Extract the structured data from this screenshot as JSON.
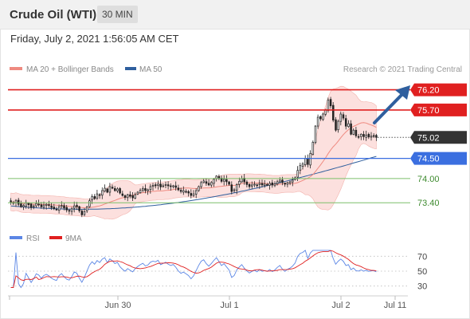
{
  "header": {
    "title": "Crude Oil (WTI)",
    "timeframe": "30 MIN"
  },
  "timestamp": "Friday, July 2, 2021 1:56:05 AM CET",
  "main_legend": [
    {
      "label": "MA 20 + Bollinger Bands",
      "color": "#ef8a80"
    },
    {
      "label": "MA 50",
      "color": "#2f5f9e"
    }
  ],
  "copyright": "Research © 2021 Trading Central",
  "chart_data": [
    {
      "type": "candlestick",
      "ylim": [
        72.85,
        76.45
      ],
      "x_ticks": [
        "Jun 30",
        "Jul 1",
        "Jul 2",
        "Jul 11"
      ],
      "grid": false,
      "legend_position": "top-left",
      "series": [
        {
          "name": "MA 20 + Bollinger Bands",
          "color": "#ef8a80"
        },
        {
          "name": "MA 50",
          "color": "#2f5f9e"
        }
      ],
      "ohlc_close": [
        73.42,
        73.4,
        73.46,
        73.36,
        73.3,
        73.33,
        73.4,
        73.35,
        73.28,
        73.32,
        73.38,
        73.36,
        73.3,
        73.34,
        73.36,
        73.33,
        73.28,
        73.25,
        73.23,
        73.3,
        73.33,
        73.27,
        73.22,
        73.2,
        73.25,
        73.32,
        73.3,
        73.2,
        73.1,
        73.18,
        73.3,
        73.45,
        73.55,
        73.5,
        73.62,
        73.58,
        73.7,
        73.76,
        73.66,
        73.8,
        73.76,
        73.7,
        73.74,
        73.64,
        73.58,
        73.53,
        73.6,
        73.56,
        73.52,
        73.6,
        73.66,
        73.71,
        73.75,
        73.7,
        73.72,
        73.8,
        73.83,
        73.82,
        73.86,
        73.79,
        73.82,
        73.85,
        73.82,
        73.8,
        73.82,
        73.78,
        73.72,
        73.68,
        73.7,
        73.67,
        73.64,
        73.58,
        73.62,
        73.7,
        73.8,
        73.9,
        73.94,
        73.88,
        73.84,
        73.9,
        73.98,
        74.06,
        74.0,
        73.93,
        73.98,
        73.92,
        73.86,
        73.68,
        73.72,
        73.85,
        73.93,
        74.0,
        73.92,
        73.85,
        73.8,
        73.84,
        73.86,
        73.83,
        73.88,
        73.84,
        73.86,
        73.84,
        73.88,
        73.84,
        73.87,
        73.92,
        73.96,
        73.9,
        73.86,
        73.9,
        73.92,
        73.96,
        74.02,
        74.2,
        74.32,
        74.36,
        74.5,
        74.35,
        74.62,
        74.9,
        75.3,
        75.52,
        75.48,
        75.6,
        75.7,
        75.95,
        75.8,
        75.45,
        75.2,
        75.42,
        75.6,
        75.5,
        75.3,
        75.36,
        75.1,
        75.2,
        75.06,
        75.04,
        75.1,
        75.04,
        75.08,
        75.03,
        75.05,
        75.06,
        75.02
      ],
      "ma50": {
        "start": 73.32,
        "end": 74.55
      },
      "current_price": 75.02,
      "levels": [
        {
          "value": 76.2,
          "label": "76.20",
          "color": "#e02020",
          "kind": "resistance"
        },
        {
          "value": 75.7,
          "label": "75.70",
          "color": "#e02020",
          "kind": "resistance"
        },
        {
          "value": 75.02,
          "label": "75.02",
          "color": "#333333",
          "kind": "current"
        },
        {
          "value": 74.5,
          "label": "74.50",
          "color": "#3b6fe0",
          "kind": "pivot"
        },
        {
          "value": 74.0,
          "label": "74.00",
          "color": "#7cbf6a",
          "kind": "support"
        },
        {
          "value": 73.4,
          "label": "73.40",
          "color": "#7cbf6a",
          "kind": "support"
        }
      ]
    },
    {
      "type": "line",
      "ylim": [
        20,
        80
      ],
      "y_ticks": [
        70,
        50,
        30
      ],
      "series": [
        {
          "name": "RSI",
          "color": "#5b86e5"
        },
        {
          "name": "9MA",
          "color": "#e02020"
        }
      ]
    }
  ]
}
